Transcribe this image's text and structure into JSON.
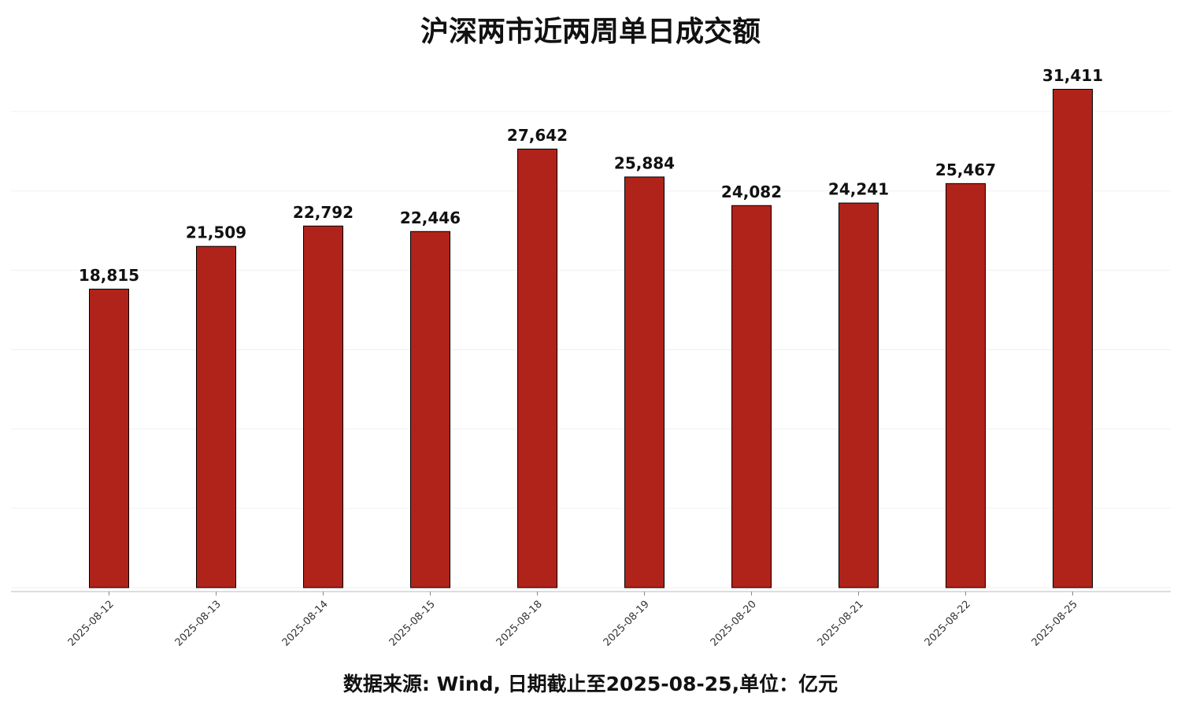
{
  "chart_data": {
    "type": "bar",
    "title": "沪深两市近两周单日成交额",
    "note": "数据来源: Wind, 日期截止至2025-08-25,单位：亿元",
    "categories": [
      "2025-08-12",
      "2025-08-13",
      "2025-08-14",
      "2025-08-15",
      "2025-08-18",
      "2025-08-19",
      "2025-08-20",
      "2025-08-21",
      "2025-08-22",
      "2025-08-25"
    ],
    "values": [
      18815,
      21509,
      22792,
      22446,
      27642,
      25884,
      24082,
      24241,
      25467,
      31411
    ],
    "value_labels": [
      "18,815",
      "21,509",
      "22,792",
      "22,446",
      "27,642",
      "25,884",
      "24,082",
      "24,241",
      "25,467",
      "31,411"
    ],
    "color": "#b0231a",
    "ylim": [
      0,
      32500
    ],
    "yticks": [
      0,
      5000,
      10000,
      15000,
      20000,
      25000,
      30000
    ],
    "grid": true
  }
}
